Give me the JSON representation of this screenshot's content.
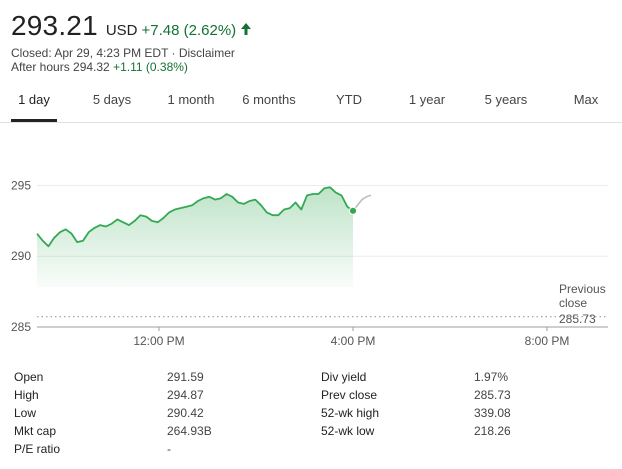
{
  "quote": {
    "price": "293.21",
    "currency": "USD",
    "change": "+7.48 (2.62%)",
    "closed_text": "Closed: Apr 29, 4:23 PM EDT · Disclaimer",
    "after_hours_label": "After hours 294.32",
    "after_hours_change": "+1.11 (0.38%)",
    "accent_up": "#137333"
  },
  "tabs": [
    "1 day",
    "5 days",
    "1 month",
    "6 months",
    "YTD",
    "1 year",
    "5 years",
    "Max"
  ],
  "active_tab": "1 day",
  "chart_data": {
    "type": "line",
    "y_ticks": [
      "295",
      "290",
      "285"
    ],
    "x_ticks": [
      "12:00 PM",
      "4:00 PM",
      "8:00 PM"
    ],
    "ylim": [
      285,
      296.8
    ],
    "previous_close_label": [
      "Previous",
      "close"
    ],
    "previous_close": 285.73,
    "previous_close_text": "285.73",
    "line_color": "#34a853",
    "after_hours_color": "#bdbdbd",
    "series": [
      {
        "values": [
          291.59,
          291.1,
          290.7,
          291.3,
          291.7,
          291.9,
          291.6,
          291.0,
          291.1,
          291.7,
          292.0,
          292.2,
          292.1,
          292.3,
          292.6,
          292.4,
          292.2,
          292.5,
          292.9,
          292.8,
          292.5,
          292.4,
          292.7,
          293.1,
          293.3,
          293.4,
          293.5,
          293.6,
          293.9,
          294.1,
          294.2,
          294.0,
          294.1,
          294.4,
          294.2,
          293.8,
          293.7,
          293.9,
          294.0,
          293.6,
          293.1,
          292.9,
          292.9,
          293.3,
          293.4,
          293.8,
          293.3,
          294.3,
          294.4,
          294.4,
          294.8,
          294.87,
          294.5,
          294.3,
          293.5,
          293.21
        ]
      },
      {
        "values": [
          293.21,
          293.6,
          294.0,
          294.2,
          294.32
        ]
      }
    ]
  },
  "stats": {
    "left": [
      {
        "label": "Open",
        "value": "291.59"
      },
      {
        "label": "High",
        "value": "294.87"
      },
      {
        "label": "Low",
        "value": "290.42"
      },
      {
        "label": "Mkt cap",
        "value": "264.93B"
      },
      {
        "label": "P/E ratio",
        "value": "-"
      }
    ],
    "right": [
      {
        "label": "Div yield",
        "value": "1.97%"
      },
      {
        "label": "Prev close",
        "value": "285.73"
      },
      {
        "label": "52-wk high",
        "value": "339.08"
      },
      {
        "label": "52-wk low",
        "value": "218.26"
      }
    ]
  }
}
